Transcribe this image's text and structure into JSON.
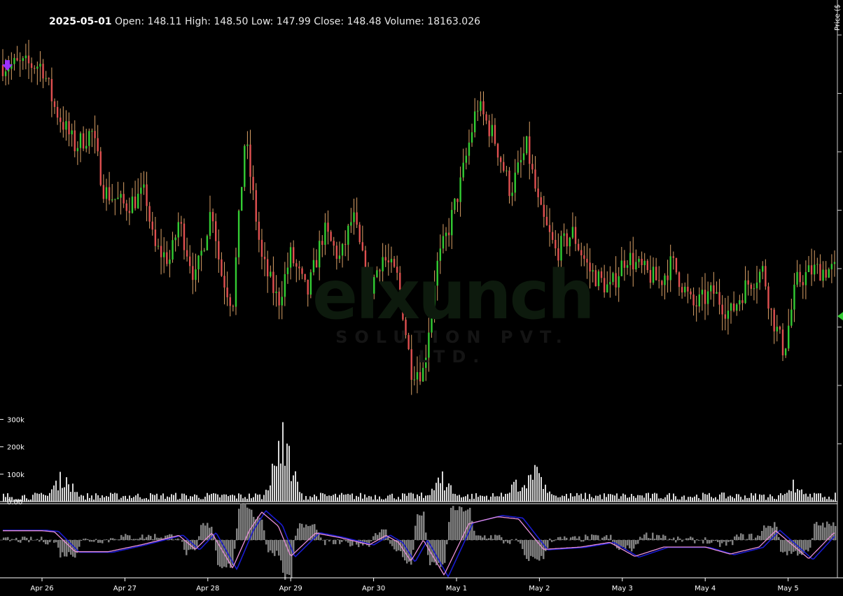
{
  "header": {
    "date": "2025-05-01",
    "open_label": "Open:",
    "open": "148.11",
    "high_label": "High:",
    "high": "148.50",
    "low_label": "Low:",
    "low": "147.99",
    "close_label": "Close:",
    "close": "148.48",
    "volume_label": "Volume:",
    "volume": "18163.026"
  },
  "axis": {
    "price_title": "Price ($"
  },
  "watermark": {
    "main": "elxunch",
    "sub": "SOLUTION PVT. LTD."
  },
  "colors": {
    "background": "#000000",
    "up": "#33cc33",
    "down": "#e05050",
    "wick": "#d9a066",
    "volume": "#d9d9d9",
    "oscillator_line": "#e890d8",
    "oscillator_signal": "#1a1ad0",
    "histogram": "#808080",
    "marker_sell": "#9b30ff",
    "marker_last": "#33cc33"
  },
  "chart_data": [
    {
      "type": "candlestick",
      "name": "price",
      "x_ticks": [
        "Apr 26",
        "Apr 27",
        "Apr 28",
        "Apr 29",
        "Apr 30",
        "May 1",
        "May 2",
        "May 3",
        "May 4",
        "May 5"
      ],
      "close_path": [
        {
          "day": 0.0,
          "value": 160.5
        },
        {
          "day": 0.15,
          "value": 158.8
        },
        {
          "day": 0.4,
          "value": 157.2
        },
        {
          "day": 0.6,
          "value": 157.8
        },
        {
          "day": 0.75,
          "value": 155.4
        },
        {
          "day": 1.0,
          "value": 154.8
        },
        {
          "day": 1.25,
          "value": 155.3
        },
        {
          "day": 1.35,
          "value": 153.1
        },
        {
          "day": 1.55,
          "value": 152.6
        },
        {
          "day": 1.65,
          "value": 154.2
        },
        {
          "day": 1.85,
          "value": 151.8
        },
        {
          "day": 2.05,
          "value": 154.8
        },
        {
          "day": 2.15,
          "value": 152.2
        },
        {
          "day": 2.3,
          "value": 150.8
        },
        {
          "day": 2.45,
          "value": 157.6
        },
        {
          "day": 2.65,
          "value": 152.6
        },
        {
          "day": 2.85,
          "value": 150.9
        },
        {
          "day": 3.0,
          "value": 152.8
        },
        {
          "day": 3.2,
          "value": 151.2
        },
        {
          "day": 3.4,
          "value": 153.8
        },
        {
          "day": 3.6,
          "value": 152.6
        },
        {
          "day": 3.75,
          "value": 154.4
        },
        {
          "day": 3.95,
          "value": 151.3
        },
        {
          "day": 4.1,
          "value": 152.8
        },
        {
          "day": 4.3,
          "value": 151.8
        },
        {
          "day": 4.45,
          "value": 148.2
        },
        {
          "day": 4.6,
          "value": 148.1
        },
        {
          "day": 4.75,
          "value": 152.2
        },
        {
          "day": 4.9,
          "value": 153.8
        },
        {
          "day": 5.05,
          "value": 155.7
        },
        {
          "day": 5.25,
          "value": 158.9
        },
        {
          "day": 5.45,
          "value": 157.6
        },
        {
          "day": 5.65,
          "value": 155.4
        },
        {
          "day": 5.85,
          "value": 157.2
        },
        {
          "day": 6.0,
          "value": 154.6
        },
        {
          "day": 6.2,
          "value": 152.9
        },
        {
          "day": 6.4,
          "value": 153.7
        },
        {
          "day": 6.6,
          "value": 152.2
        },
        {
          "day": 6.85,
          "value": 151.4
        },
        {
          "day": 7.05,
          "value": 152.8
        },
        {
          "day": 7.2,
          "value": 152.3
        },
        {
          "day": 7.45,
          "value": 151.7
        },
        {
          "day": 7.6,
          "value": 152.5
        },
        {
          "day": 7.85,
          "value": 150.7
        },
        {
          "day": 8.1,
          "value": 151.3
        },
        {
          "day": 8.3,
          "value": 150.4
        },
        {
          "day": 8.5,
          "value": 151.6
        },
        {
          "day": 8.7,
          "value": 152.2
        },
        {
          "day": 8.8,
          "value": 150.4
        },
        {
          "day": 8.95,
          "value": 148.9
        },
        {
          "day": 9.1,
          "value": 151.7
        },
        {
          "day": 9.3,
          "value": 152.2
        }
      ],
      "ylim": [
        145.0,
        162.0
      ]
    },
    {
      "type": "bar",
      "name": "volume",
      "y_ticks": [
        "300k",
        "200k",
        "100k",
        "0.00"
      ],
      "ylim": [
        0,
        350000
      ],
      "spikes": [
        {
          "day": 0.25,
          "value": 130000
        },
        {
          "day": 2.9,
          "value": 290000
        },
        {
          "day": 4.82,
          "value": 110000
        },
        {
          "day": 5.95,
          "value": 150000
        },
        {
          "day": 5.7,
          "value": 80000
        },
        {
          "day": 9.05,
          "value": 80000
        }
      ],
      "base": 22000
    },
    {
      "type": "line",
      "name": "oscillator",
      "ylim": [
        -1.5,
        1.5
      ],
      "points": [
        {
          "day": 0.0,
          "value": 0.4
        },
        {
          "day": 0.15,
          "value": 0.35
        },
        {
          "day": 0.4,
          "value": -0.5
        },
        {
          "day": 0.8,
          "value": -0.5
        },
        {
          "day": 1.2,
          "value": -0.2
        },
        {
          "day": 1.65,
          "value": 0.2
        },
        {
          "day": 1.85,
          "value": -0.4
        },
        {
          "day": 2.05,
          "value": 0.3
        },
        {
          "day": 2.3,
          "value": -1.2
        },
        {
          "day": 2.5,
          "value": 0.4
        },
        {
          "day": 2.65,
          "value": 1.2
        },
        {
          "day": 2.85,
          "value": 0.6
        },
        {
          "day": 3.0,
          "value": -0.7
        },
        {
          "day": 3.3,
          "value": 0.3
        },
        {
          "day": 3.6,
          "value": 0.1
        },
        {
          "day": 3.95,
          "value": -0.2
        },
        {
          "day": 4.15,
          "value": 0.2
        },
        {
          "day": 4.3,
          "value": -0.1
        },
        {
          "day": 4.45,
          "value": -0.9
        },
        {
          "day": 4.6,
          "value": 0.0
        },
        {
          "day": 4.85,
          "value": -1.5
        },
        {
          "day": 5.15,
          "value": 0.7
        },
        {
          "day": 5.5,
          "value": 1.0
        },
        {
          "day": 5.75,
          "value": 0.9
        },
        {
          "day": 6.05,
          "value": -0.4
        },
        {
          "day": 6.5,
          "value": -0.3
        },
        {
          "day": 6.85,
          "value": -0.1
        },
        {
          "day": 7.15,
          "value": -0.7
        },
        {
          "day": 7.5,
          "value": -0.3
        },
        {
          "day": 8.0,
          "value": -0.3
        },
        {
          "day": 8.3,
          "value": -0.6
        },
        {
          "day": 8.65,
          "value": -0.3
        },
        {
          "day": 8.85,
          "value": 0.4
        },
        {
          "day": 9.05,
          "value": -0.2
        },
        {
          "day": 9.25,
          "value": -0.8
        },
        {
          "day": 9.55,
          "value": 0.3
        }
      ]
    }
  ]
}
